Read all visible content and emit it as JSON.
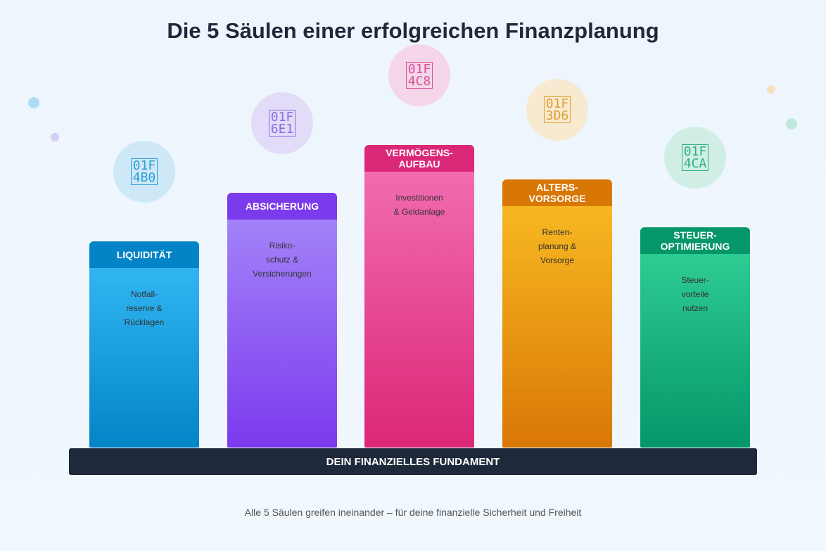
{
  "title": "Die 5 Säulen einer erfolgreichen Finanzplanung",
  "pillars": [
    {
      "heading": "LIQUIDITÄT",
      "text": "Notfall-\nreserve &\nRücklagen",
      "icon": "money-bag-icon",
      "icon_code": "01F\n4B0",
      "header_color": "#0284c7",
      "body_color": "#38bdf8",
      "icon_bg": "#cfe8f8",
      "icon_color": "#2a9fd6"
    },
    {
      "heading": "ABSICHERUNG",
      "text": "Risiko-\nschutz &\nVersicherungen",
      "icon": "shield-icon",
      "icon_code": "01F\n6E1",
      "header_color": "#7c3aed",
      "body_color": "#a78bfa",
      "icon_bg": "#e2dcf8",
      "icon_color": "#8b6fe0"
    },
    {
      "heading": "VERMÖGENS-\nAUFBAU",
      "text": "Investitionen\n& Geldanlage",
      "icon": "chart-increasing-icon",
      "icon_code": "01F\n4C8",
      "header_color": "#db2777",
      "body_color": "#f472b6",
      "icon_bg": "#f5d6e8",
      "icon_color": "#d9539a"
    },
    {
      "heading": "ALTERS-\nVORSORGE",
      "text": "Renten-\nplanung &\nVorsorge",
      "icon": "beach-umbrella-icon",
      "icon_code": "01F\n3D6",
      "header_color": "#d97706",
      "body_color": "#fbbf24",
      "icon_bg": "#f7ead0",
      "icon_color": "#e0a030"
    },
    {
      "heading": "STEUER-\nOPTIMIERUNG",
      "text": "Steuer-\nvorteile\nnutzen",
      "icon": "bar-chart-icon",
      "icon_code": "01F\n4CA",
      "header_color": "#059669",
      "body_color": "#34d399",
      "icon_bg": "#d0eee6",
      "icon_color": "#2fae86"
    }
  ],
  "foundation": "DEIN FINANZIELLES FUNDAMENT",
  "footer": "Alle 5 Säulen greifen ineinander – für deine finanzielle Sicherheit und Freiheit"
}
